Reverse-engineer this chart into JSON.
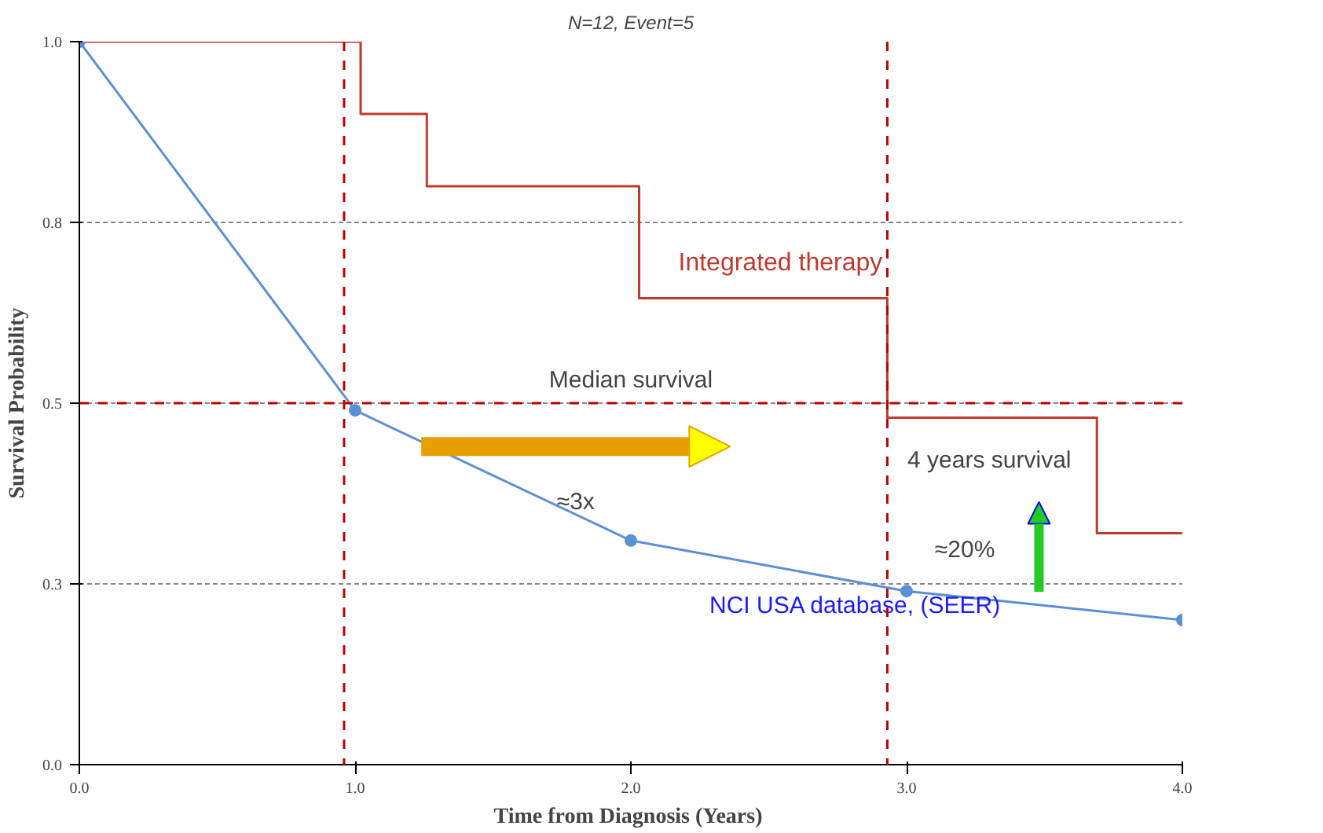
{
  "chart_data": {
    "type": "line",
    "title": "N=12, Event=5",
    "xlabel": "Time from Diagnosis  (Years)",
    "ylabel": "Survival Probability",
    "xlim": [
      0,
      4
    ],
    "ylim": [
      0,
      1
    ],
    "xticks": [
      {
        "value": 0,
        "label": "0.0"
      },
      {
        "value": 1,
        "label": "1.0"
      },
      {
        "value": 2,
        "label": "2.0"
      },
      {
        "value": 3,
        "label": "3.0"
      },
      {
        "value": 4,
        "label": "4.0"
      }
    ],
    "yticks": [
      {
        "value": 0,
        "label": "0.0"
      },
      {
        "value": 0.25,
        "label": "0.3"
      },
      {
        "value": 0.5,
        "label": "0.5"
      },
      {
        "value": 0.75,
        "label": "0.8"
      },
      {
        "value": 1,
        "label": "1.0"
      }
    ],
    "grid": "y",
    "legend": false,
    "series": [
      {
        "name": "Integrated therapy",
        "type": "step",
        "color": "#c0392b",
        "marker": "none",
        "x": [
          0,
          1.02,
          1.26,
          2.03,
          2.93,
          3.69,
          4.0
        ],
        "values": [
          1,
          0.9,
          0.8,
          0.645,
          0.48,
          0.32,
          0.32
        ]
      },
      {
        "name": "NCI USA database, (SEER)",
        "color": "#5b8fd6",
        "marker": "circle",
        "x": [
          0,
          1,
          2,
          3,
          4
        ],
        "values": [
          1,
          0.49,
          0.31,
          0.24,
          0.2
        ]
      }
    ],
    "ref_lines": [
      {
        "axis": "y",
        "value": 0.5,
        "label": "Median survival",
        "color": "#c00000",
        "line_style": "dashed"
      },
      {
        "axis": "x",
        "value": 0.96,
        "label": null,
        "color": "#c00000",
        "line_style": "dashed"
      },
      {
        "axis": "x",
        "value": 2.93,
        "label": null,
        "color": "#c00000",
        "line_style": "dashed"
      }
    ],
    "annotations": [
      "≈3x",
      "≈20%",
      "4 years survival"
    ]
  }
}
